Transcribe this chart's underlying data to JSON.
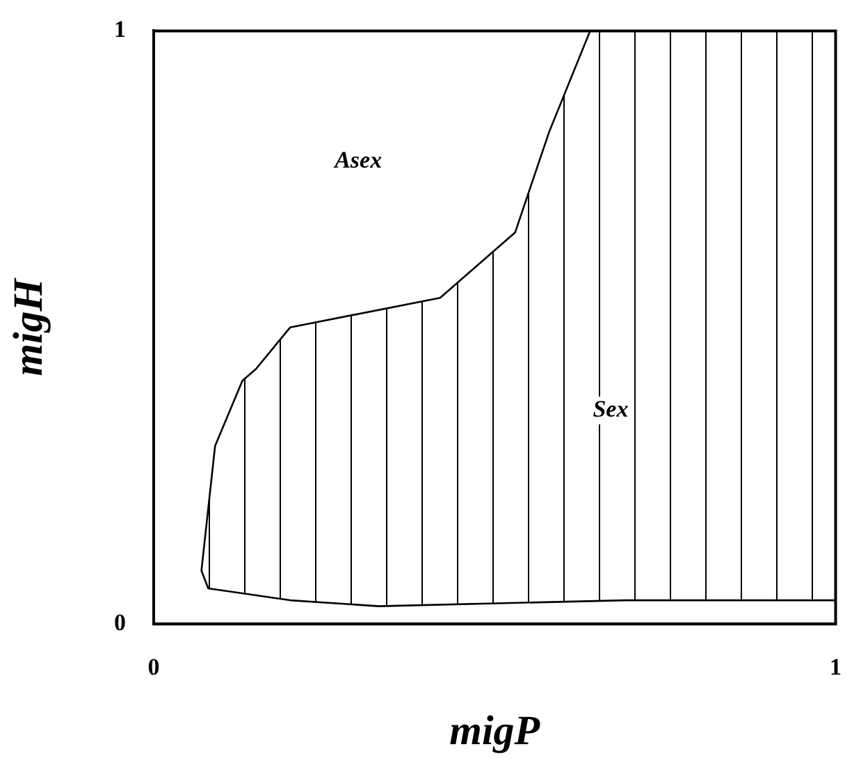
{
  "chart_data": {
    "type": "line",
    "xlabel": "migP",
    "ylabel": "migH",
    "series": [
      {
        "color": "#000000",
        "x": [
          1,
          0.91,
          0.69,
          0.33,
          0.2,
          0.08,
          0.07,
          0.09,
          0.13,
          0.15,
          0.2,
          0.42,
          0.53,
          0.58,
          0.64,
          1
        ],
        "values": [
          0.04,
          0.04,
          0.04,
          0.03,
          0.04,
          0.06,
          0.09,
          0.3,
          0.41,
          0.43,
          0.5,
          0.55,
          0.66,
          0.83,
          1,
          1
        ]
      }
    ],
    "xlim": [
      0,
      1
    ],
    "ylim": [
      0,
      1
    ],
    "xticks": [
      0,
      1
    ],
    "yticks": [
      0,
      1
    ],
    "grid": false,
    "legend": false,
    "marker": "none",
    "line_style": "solid",
    "annotations": [
      "Asex",
      "Sex"
    ]
  }
}
